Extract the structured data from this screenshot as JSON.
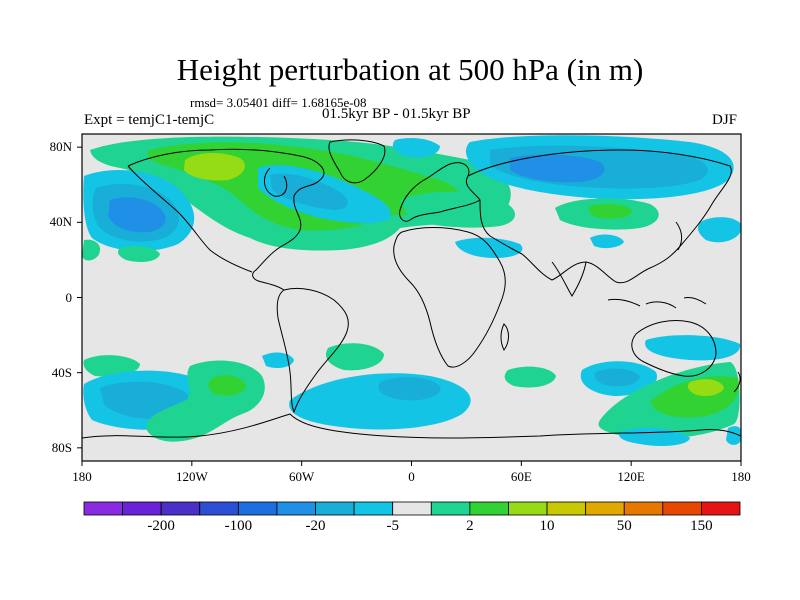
{
  "title": "Height perturbation at 500 hPa (in m)",
  "stats_line": "rmsd= 3.05401 diff= 1.68165e-08",
  "period_line": "01.5kyr BP - 01.5kyr BP",
  "expt_label": "Expt = temjC1-temjC",
  "season_label": "DJF",
  "y_ticks": [
    {
      "label": "80N",
      "lat": 80
    },
    {
      "label": "40N",
      "lat": 40
    },
    {
      "label": "0",
      "lat": 0
    },
    {
      "label": "40S",
      "lat": -40
    },
    {
      "label": "80S",
      "lat": -80
    }
  ],
  "x_ticks": [
    {
      "label": "180",
      "lon": -180
    },
    {
      "label": "120W",
      "lon": -120
    },
    {
      "label": "60W",
      "lon": -60
    },
    {
      "label": "0",
      "lon": 0
    },
    {
      "label": "60E",
      "lon": 60
    },
    {
      "label": "120E",
      "lon": 120
    },
    {
      "label": "180",
      "lon": 180
    }
  ],
  "colorbar": {
    "colors": [
      "#8a2be2",
      "#6a22d8",
      "#4b30c8",
      "#2d4fd4",
      "#1e6ee0",
      "#2090e6",
      "#19aed8",
      "#14c4e4",
      "#e6e6e6",
      "#1ed490",
      "#32d232",
      "#96dc14",
      "#c8c800",
      "#e0a800",
      "#e67800",
      "#e64800",
      "#e61414"
    ],
    "labels": [
      {
        "text": "-200",
        "after_box": 1
      },
      {
        "text": "-100",
        "after_box": 3
      },
      {
        "text": "-20",
        "after_box": 5
      },
      {
        "text": "-5",
        "after_box": 7
      },
      {
        "text": "2",
        "after_box": 9
      },
      {
        "text": "10",
        "after_box": 11
      },
      {
        "text": "50",
        "after_box": 13
      },
      {
        "text": "150",
        "after_box": 15
      }
    ]
  }
}
